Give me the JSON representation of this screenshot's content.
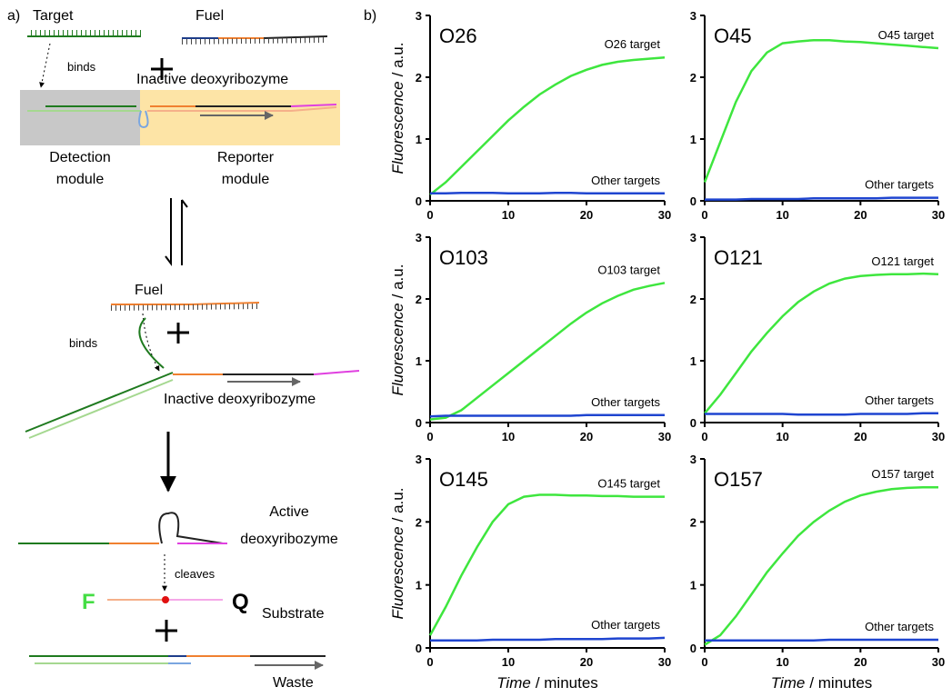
{
  "diagram": {
    "panel_a_label": "a)",
    "panel_b_label": "b)",
    "target": "Target",
    "fuel_1": "Fuel",
    "binds_1": "binds",
    "inactive_1": "Inactive deoxyribozyme",
    "detection_1": "Detection",
    "detection_2": "module",
    "reporter_1": "Reporter",
    "reporter_2": "module",
    "fuel_2": "Fuel",
    "binds_2": "binds",
    "inactive_2": "Inactive deoxyribozyme",
    "active_1": "Active",
    "active_2": "deoxyribozyme",
    "cleaves": "cleaves",
    "fluorophore": "F",
    "quencher": "Q",
    "substrate": "Substrate",
    "waste": "Waste"
  },
  "chart_data": [
    {
      "type": "line",
      "title": "O26",
      "ylabel_var": "Fluorescence",
      "ylabel_unit": "/ a.u.",
      "x": [
        0,
        2,
        4,
        6,
        8,
        10,
        12,
        14,
        16,
        18,
        20,
        22,
        24,
        26,
        28,
        30
      ],
      "series": [
        {
          "name": "O26 target",
          "color": "#3ee63e",
          "values": [
            0.1,
            0.3,
            0.55,
            0.8,
            1.05,
            1.3,
            1.52,
            1.72,
            1.88,
            2.02,
            2.12,
            2.2,
            2.25,
            2.28,
            2.3,
            2.32
          ]
        },
        {
          "name": "Other targets",
          "color": "#1f45d0",
          "values": [
            0.12,
            0.12,
            0.13,
            0.13,
            0.13,
            0.12,
            0.12,
            0.12,
            0.13,
            0.13,
            0.12,
            0.12,
            0.12,
            0.12,
            0.12,
            0.12
          ]
        }
      ],
      "xlim": [
        0,
        30
      ],
      "xticks": [
        0,
        10,
        20,
        30
      ],
      "ylim": [
        0,
        3
      ],
      "yticks": [
        0,
        1,
        2,
        3
      ]
    },
    {
      "type": "line",
      "title": "O45",
      "x": [
        0,
        2,
        4,
        6,
        8,
        10,
        12,
        14,
        16,
        18,
        20,
        22,
        24,
        26,
        28,
        30
      ],
      "series": [
        {
          "name": "O45 target",
          "color": "#3ee63e",
          "values": [
            0.3,
            0.95,
            1.6,
            2.1,
            2.4,
            2.55,
            2.58,
            2.6,
            2.6,
            2.58,
            2.57,
            2.55,
            2.53,
            2.51,
            2.49,
            2.47
          ]
        },
        {
          "name": "Other targets",
          "color": "#1f45d0",
          "values": [
            0.02,
            0.02,
            0.02,
            0.03,
            0.03,
            0.03,
            0.03,
            0.04,
            0.04,
            0.04,
            0.04,
            0.04,
            0.05,
            0.05,
            0.05,
            0.05
          ]
        }
      ],
      "xlim": [
        0,
        30
      ],
      "xticks": [
        0,
        10,
        20,
        30
      ],
      "ylim": [
        0,
        3
      ],
      "yticks": [
        0,
        1,
        2,
        3
      ]
    },
    {
      "type": "line",
      "title": "O103",
      "ylabel_var": "Fluorescence",
      "ylabel_unit": "/ a.u.",
      "x": [
        0,
        2,
        4,
        6,
        8,
        10,
        12,
        14,
        16,
        18,
        20,
        22,
        24,
        26,
        28,
        30
      ],
      "series": [
        {
          "name": "O103 target",
          "color": "#3ee63e",
          "values": [
            0.05,
            0.08,
            0.2,
            0.4,
            0.6,
            0.8,
            1.0,
            1.2,
            1.4,
            1.6,
            1.78,
            1.93,
            2.05,
            2.15,
            2.21,
            2.26
          ]
        },
        {
          "name": "Other targets",
          "color": "#1f45d0",
          "values": [
            0.1,
            0.11,
            0.11,
            0.11,
            0.11,
            0.11,
            0.11,
            0.11,
            0.11,
            0.11,
            0.12,
            0.12,
            0.12,
            0.12,
            0.12,
            0.12
          ]
        }
      ],
      "xlim": [
        0,
        30
      ],
      "xticks": [
        0,
        10,
        20,
        30
      ],
      "ylim": [
        0,
        3
      ],
      "yticks": [
        0,
        1,
        2,
        3
      ]
    },
    {
      "type": "line",
      "title": "O121",
      "x": [
        0,
        2,
        4,
        6,
        8,
        10,
        12,
        14,
        16,
        18,
        20,
        22,
        24,
        26,
        28,
        30
      ],
      "series": [
        {
          "name": "O121 target",
          "color": "#3ee63e",
          "values": [
            0.15,
            0.45,
            0.8,
            1.15,
            1.45,
            1.72,
            1.95,
            2.12,
            2.25,
            2.33,
            2.37,
            2.39,
            2.4,
            2.4,
            2.41,
            2.4
          ]
        },
        {
          "name": "Other targets",
          "color": "#1f45d0",
          "values": [
            0.14,
            0.14,
            0.14,
            0.14,
            0.14,
            0.14,
            0.13,
            0.13,
            0.13,
            0.13,
            0.14,
            0.14,
            0.14,
            0.14,
            0.15,
            0.15
          ]
        }
      ],
      "xlim": [
        0,
        30
      ],
      "xticks": [
        0,
        10,
        20,
        30
      ],
      "ylim": [
        0,
        3
      ],
      "yticks": [
        0,
        1,
        2,
        3
      ]
    },
    {
      "type": "line",
      "title": "O145",
      "ylabel_var": "Fluorescence",
      "ylabel_unit": "/ a.u.",
      "xlabel_var": "Time",
      "xlabel_unit": "/ minutes",
      "x": [
        0,
        2,
        4,
        6,
        8,
        10,
        12,
        14,
        16,
        18,
        20,
        22,
        24,
        26,
        28,
        30
      ],
      "series": [
        {
          "name": "O145 target",
          "color": "#3ee63e",
          "values": [
            0.2,
            0.65,
            1.15,
            1.6,
            2.0,
            2.28,
            2.4,
            2.43,
            2.43,
            2.42,
            2.42,
            2.41,
            2.41,
            2.4,
            2.4,
            2.4
          ]
        },
        {
          "name": "Other targets",
          "color": "#1f45d0",
          "values": [
            0.12,
            0.12,
            0.12,
            0.12,
            0.13,
            0.13,
            0.13,
            0.13,
            0.14,
            0.14,
            0.14,
            0.14,
            0.15,
            0.15,
            0.15,
            0.16
          ]
        }
      ],
      "xlim": [
        0,
        30
      ],
      "xticks": [
        0,
        10,
        20,
        30
      ],
      "ylim": [
        0,
        3
      ],
      "yticks": [
        0,
        1,
        2,
        3
      ]
    },
    {
      "type": "line",
      "title": "O157",
      "xlabel_var": "Time",
      "xlabel_unit": "/ minutes",
      "x": [
        0,
        2,
        4,
        6,
        8,
        10,
        12,
        14,
        16,
        18,
        20,
        22,
        24,
        26,
        28,
        30
      ],
      "series": [
        {
          "name": "O157 target",
          "color": "#3ee63e",
          "values": [
            0.05,
            0.2,
            0.5,
            0.85,
            1.2,
            1.5,
            1.78,
            2.0,
            2.18,
            2.32,
            2.42,
            2.48,
            2.52,
            2.54,
            2.55,
            2.55
          ]
        },
        {
          "name": "Other targets",
          "color": "#1f45d0",
          "values": [
            0.12,
            0.12,
            0.12,
            0.12,
            0.12,
            0.12,
            0.12,
            0.12,
            0.13,
            0.13,
            0.13,
            0.13,
            0.13,
            0.13,
            0.13,
            0.13
          ]
        }
      ],
      "xlim": [
        0,
        30
      ],
      "xticks": [
        0,
        10,
        20,
        30
      ],
      "ylim": [
        0,
        3
      ],
      "yticks": [
        0,
        1,
        2,
        3
      ]
    }
  ]
}
